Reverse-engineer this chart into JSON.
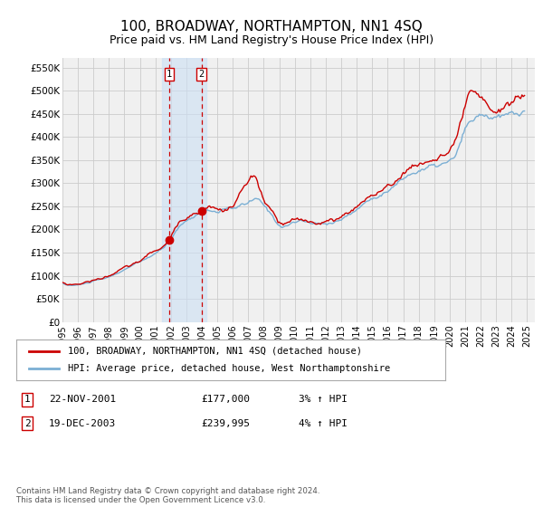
{
  "title": "100, BROADWAY, NORTHAMPTON, NN1 4SQ",
  "subtitle": "Price paid vs. HM Land Registry's House Price Index (HPI)",
  "title_fontsize": 11,
  "subtitle_fontsize": 9,
  "yticks": [
    0,
    50000,
    100000,
    150000,
    200000,
    250000,
    300000,
    350000,
    400000,
    450000,
    500000,
    550000
  ],
  "ytick_labels": [
    "£0",
    "£50K",
    "£100K",
    "£150K",
    "£200K",
    "£250K",
    "£300K",
    "£350K",
    "£400K",
    "£450K",
    "£500K",
    "£550K"
  ],
  "ylim": [
    0,
    570000
  ],
  "xlim_start": 1995.0,
  "xlim_end": 2025.5,
  "hpi_color": "#7bafd4",
  "price_color": "#cc0000",
  "grid_color": "#cccccc",
  "bg_color": "#f0f0f0",
  "sale1_x": 2001.9,
  "sale1_y": 177000,
  "sale1_label": "1",
  "sale2_x": 2003.97,
  "sale2_y": 239995,
  "sale2_label": "2",
  "annotation_shade_color": "#cce0f5",
  "annotation_vline_color": "#cc0000",
  "legend_line1": "100, BROADWAY, NORTHAMPTON, NN1 4SQ (detached house)",
  "legend_line2": "HPI: Average price, detached house, West Northamptonshire",
  "table_row1": [
    "1",
    "22-NOV-2001",
    "£177,000",
    "3% ↑ HPI"
  ],
  "table_row2": [
    "2",
    "19-DEC-2003",
    "£239,995",
    "4% ↑ HPI"
  ],
  "footer": "Contains HM Land Registry data © Crown copyright and database right 2024.\nThis data is licensed under the Open Government Licence v3.0."
}
